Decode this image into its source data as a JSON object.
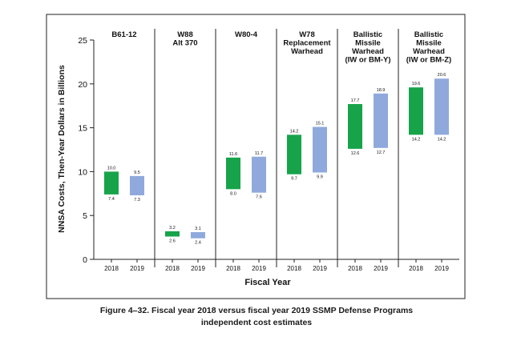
{
  "chart_data": {
    "type": "range-bar",
    "ylabel": "NNSA Costs, Then-Year Dollars in Billions",
    "xlabel": "Fiscal Year",
    "ylim": [
      0,
      25
    ],
    "yticks": [
      0,
      5,
      10,
      15,
      20,
      25
    ],
    "grid": false,
    "colors": {
      "2018": "#17a34a",
      "2019": "#8fa9dc"
    },
    "groups": [
      {
        "title": [
          "B61-12"
        ],
        "bars": [
          {
            "year": "2018",
            "low": 7.4,
            "high": 10.0,
            "low_label": "7.4",
            "high_label": "10.0"
          },
          {
            "year": "2019",
            "low": 7.3,
            "high": 9.5,
            "low_label": "7.3",
            "high_label": "9.5"
          }
        ]
      },
      {
        "title": [
          "W88",
          "Alt 370"
        ],
        "bars": [
          {
            "year": "2018",
            "low": 2.6,
            "high": 3.2,
            "low_label": "2.6",
            "high_label": "3.2"
          },
          {
            "year": "2019",
            "low": 2.4,
            "high": 3.1,
            "low_label": "2.4",
            "high_label": "3.1"
          }
        ]
      },
      {
        "title": [
          "W80-4"
        ],
        "bars": [
          {
            "year": "2018",
            "low": 8.0,
            "high": 11.6,
            "low_label": "8.0",
            "high_label": "11.6"
          },
          {
            "year": "2019",
            "low": 7.6,
            "high": 11.7,
            "low_label": "7.6",
            "high_label": "11.7"
          }
        ]
      },
      {
        "title": [
          "W78",
          "Replacement",
          "Warhead"
        ],
        "bars": [
          {
            "year": "2018",
            "low": 9.7,
            "high": 14.2,
            "low_label": "9.7",
            "high_label": "14.2"
          },
          {
            "year": "2019",
            "low": 9.9,
            "high": 15.1,
            "low_label": "9.9",
            "high_label": "15.1"
          }
        ]
      },
      {
        "title": [
          "Ballistic",
          "Missile",
          "Warhead",
          "(IW or BM-Y)"
        ],
        "bars": [
          {
            "year": "2018",
            "low": 12.6,
            "high": 17.7,
            "low_label": "12.6",
            "high_label": "17.7"
          },
          {
            "year": "2019",
            "low": 12.7,
            "high": 18.9,
            "low_label": "12.7",
            "high_label": "18.9"
          }
        ]
      },
      {
        "title": [
          "Ballistic",
          "Missile",
          "Warhead",
          "(IW or BM-Z)"
        ],
        "bars": [
          {
            "year": "2018",
            "low": 14.2,
            "high": 19.6,
            "low_label": "14.2",
            "high_label": "19.6"
          },
          {
            "year": "2019",
            "low": 14.2,
            "high": 20.6,
            "low_label": "14.2",
            "high_label": "20.6"
          }
        ]
      }
    ]
  },
  "caption": {
    "line1": "Figure 4–32.  Fiscal year 2018 versus fiscal year 2019 SSMP Defense Programs",
    "line2": "independent cost estimates"
  }
}
